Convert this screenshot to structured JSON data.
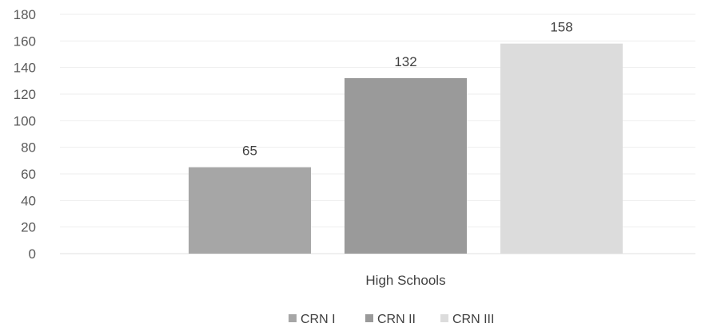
{
  "chart_data": {
    "type": "bar",
    "categories": [
      "High Schools"
    ],
    "series": [
      {
        "name": "CRN I",
        "values": [
          65
        ],
        "color": "#a6a6a6"
      },
      {
        "name": "CRN II",
        "values": [
          132
        ],
        "color": "#9a9a9a"
      },
      {
        "name": "CRN III",
        "values": [
          158
        ],
        "color": "#dcdcdc"
      }
    ],
    "title": "",
    "xlabel": "",
    "ylabel": "",
    "ylim": [
      0,
      180
    ],
    "yticks": [
      0,
      20,
      40,
      60,
      80,
      100,
      120,
      140,
      160,
      180
    ],
    "grid": true,
    "legend": "bottom",
    "data_labels": true
  }
}
